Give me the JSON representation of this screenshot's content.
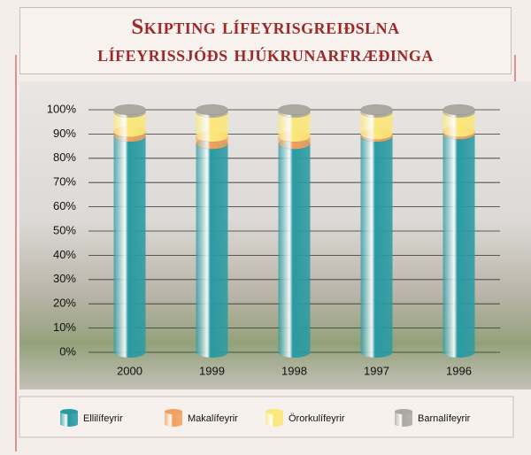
{
  "chart_data": {
    "type": "stacked_bar",
    "title": "Skipting lífeyrisgreiðslna lífeyrissjóðs hjúkrunarfræðinga",
    "categories": [
      "2000",
      "1999",
      "1998",
      "1997",
      "1996"
    ],
    "series": [
      {
        "name": "Ellilífeyrir",
        "color": "#2a9aa2",
        "values": [
          89,
          86,
          86,
          89,
          90
        ]
      },
      {
        "name": "Makalífeyrir",
        "color": "#f2a060",
        "values": [
          2,
          3,
          3,
          1,
          1
        ]
      },
      {
        "name": "Örorkulífeyrir",
        "color": "#fbe77a",
        "values": [
          8,
          10,
          10,
          9,
          8
        ]
      },
      {
        "name": "Barnalífeyrir",
        "color": "#a9a9a1",
        "values": [
          1,
          1,
          1,
          1,
          1
        ]
      }
    ],
    "ylim": [
      0,
      100
    ],
    "yticks": [
      {
        "value": 0,
        "label": "0%"
      },
      {
        "value": 10,
        "label": "10%"
      },
      {
        "value": 20,
        "label": "20%"
      },
      {
        "value": 30,
        "label": "30%"
      },
      {
        "value": 40,
        "label": "40%"
      },
      {
        "value": 50,
        "label": "50%"
      },
      {
        "value": 60,
        "label": "60%"
      },
      {
        "value": 70,
        "label": "70%"
      },
      {
        "value": 80,
        "label": "80%"
      },
      {
        "value": 90,
        "label": "90%"
      },
      {
        "value": 100,
        "label": "100%"
      }
    ],
    "grid": true
  }
}
